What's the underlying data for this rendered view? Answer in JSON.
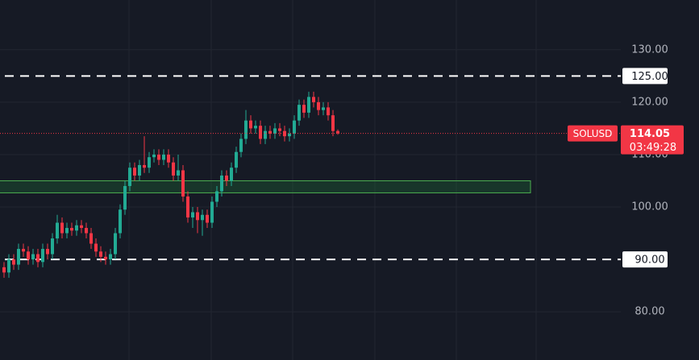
{
  "chart_data": {
    "type": "candlestick",
    "symbol": "SOLUSD",
    "last_price": 114.05,
    "countdown": "03:49:28",
    "up_color": "#22ab94",
    "down_color": "#f23645",
    "ylim": [
      70.8,
      139.5
    ],
    "yticks": [
      {
        "value": 80,
        "label": "80.00"
      },
      {
        "value": 100,
        "label": "100.00"
      },
      {
        "value": 110,
        "label": "110.00"
      },
      {
        "value": 120,
        "label": "120.00"
      },
      {
        "value": 130,
        "label": "130.00"
      }
    ],
    "grid": true,
    "levels": [
      {
        "value": 125,
        "label": "125.00"
      },
      {
        "value": 90,
        "label": "90.00"
      }
    ],
    "zone": {
      "top": 105,
      "bottom": 102.7,
      "color": "#1e8a3a"
    },
    "open": [
      88.5,
      87.5,
      90,
      89,
      92,
      91.5,
      90,
      91,
      89.5,
      92,
      91,
      94,
      97,
      95,
      96,
      95.5,
      96.5,
      96,
      95,
      93,
      91.5,
      90.5,
      90,
      91,
      95,
      99.5,
      104,
      107.5,
      106,
      108,
      107.5,
      109.5,
      110,
      109,
      110,
      108.5,
      106,
      107,
      102,
      98,
      99,
      97.5,
      98.5,
      97,
      101,
      103,
      106,
      105,
      107.5,
      110.5,
      113,
      116.5,
      115,
      115.5,
      113,
      114.5,
      114,
      115,
      114.5,
      113.5,
      114,
      116.5,
      119.5,
      118,
      121,
      120,
      118.5,
      119,
      117.5,
      114.5
    ],
    "high": [
      89.5,
      91,
      91,
      93,
      93,
      92.5,
      92,
      92,
      93,
      93,
      95,
      98.5,
      98,
      97,
      97,
      97.5,
      97.5,
      97,
      96,
      94,
      92.5,
      91.5,
      92,
      96,
      100.5,
      105,
      108.5,
      108.5,
      109,
      113.5,
      110.5,
      111,
      111,
      111,
      111,
      109.5,
      110,
      108,
      103,
      100,
      100,
      99.5,
      99.5,
      102,
      104,
      107,
      107,
      108.5,
      111.5,
      114,
      118.5,
      117.5,
      116.5,
      116.5,
      115.5,
      115.5,
      116,
      116,
      115.5,
      115,
      117.5,
      120.5,
      120.5,
      122,
      122,
      121,
      120,
      120,
      118.5,
      114.8
    ],
    "low": [
      86.5,
      86.5,
      88,
      88,
      90.5,
      89,
      89,
      88.5,
      88.5,
      90,
      90,
      93,
      94,
      94,
      94.5,
      94.5,
      95,
      94,
      92,
      90.5,
      89.5,
      89,
      89,
      90,
      94,
      98.5,
      103,
      105,
      105,
      106.5,
      106.5,
      108.5,
      108,
      108,
      107.5,
      105,
      105,
      101,
      97,
      96,
      95,
      94.5,
      96,
      96,
      100,
      102,
      104,
      104,
      106.5,
      109.5,
      112,
      114,
      114,
      112,
      112,
      113,
      113,
      113.5,
      112.5,
      112.5,
      113,
      115.5,
      117,
      117,
      119,
      117.5,
      117.5,
      116.5,
      113.5,
      113.8
    ],
    "close": [
      87.5,
      90,
      89,
      92,
      91.5,
      90,
      91,
      89.5,
      92,
      91,
      94,
      97,
      95,
      96,
      95.5,
      96.5,
      96,
      95,
      93,
      91.5,
      90.5,
      90,
      91,
      95,
      99.5,
      104,
      107.5,
      106,
      108,
      107.5,
      109.5,
      110,
      109,
      110,
      108.5,
      106,
      107,
      102,
      98,
      99,
      97.5,
      98.5,
      97,
      101,
      103,
      106,
      105,
      107.5,
      110.5,
      113,
      116.5,
      115,
      115.5,
      113,
      114.5,
      114,
      115,
      114.5,
      113.5,
      114,
      116.5,
      119.5,
      118,
      121,
      120,
      118.5,
      119,
      117.5,
      114.5,
      114.05
    ]
  }
}
